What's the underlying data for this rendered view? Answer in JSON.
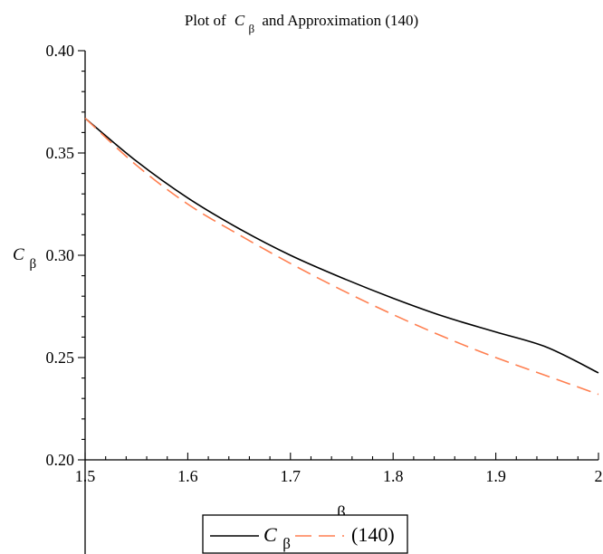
{
  "chart_data": {
    "type": "line",
    "title": {
      "prefix": "Plot of",
      "symbol": "C",
      "subscript": "β",
      "suffix": "and Approximation (140)"
    },
    "xlabel": "β",
    "ylabel": {
      "symbol": "C",
      "subscript": "β"
    },
    "xlim": [
      1.5,
      2.0
    ],
    "ylim": [
      0.2,
      0.4
    ],
    "x_ticks": [
      1.5,
      1.6,
      1.7,
      1.8,
      1.9,
      2.0
    ],
    "x_tick_labels": [
      "1.5",
      "1.6",
      "1.7",
      "1.8",
      "1.9",
      "2"
    ],
    "y_ticks": [
      0.2,
      0.25,
      0.3,
      0.35,
      0.4
    ],
    "y_tick_labels": [
      "0.20",
      "0.25",
      "0.30",
      "0.35",
      "0.40"
    ],
    "grid": false,
    "legend_position": "bottom",
    "x": [
      1.5,
      1.55,
      1.6,
      1.65,
      1.7,
      1.75,
      1.8,
      1.85,
      1.9,
      1.95,
      2.0
    ],
    "series": [
      {
        "name": "C_β",
        "legend_symbol": "C",
        "legend_subscript": "β",
        "style": "solid",
        "color": "#000000",
        "values": [
          0.367,
          0.346,
          0.328,
          0.313,
          0.3,
          0.289,
          0.279,
          0.27,
          0.2625,
          0.255,
          0.2425
        ]
      },
      {
        "name": "(140)",
        "legend_symbol": "(140)",
        "legend_subscript": "",
        "style": "dashed",
        "color": "#ff7f50",
        "values": [
          0.367,
          0.344,
          0.325,
          0.31,
          0.296,
          0.283,
          0.271,
          0.26,
          0.25,
          0.241,
          0.232
        ]
      }
    ]
  }
}
